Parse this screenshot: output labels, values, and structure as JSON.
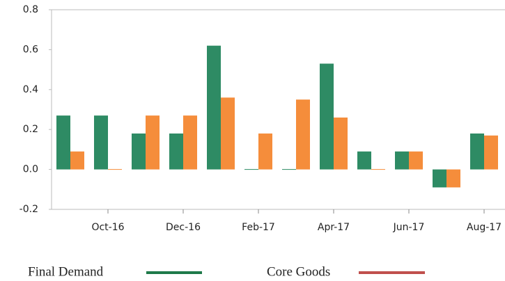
{
  "chart_data": {
    "type": "bar",
    "categories": [
      null,
      "Oct-16",
      null,
      "Dec-16",
      null,
      "Feb-17",
      null,
      "Apr-17",
      null,
      "Jun-17",
      null,
      "Aug-17"
    ],
    "series": [
      {
        "name": "Final Demand",
        "color": "#2e8b64",
        "legend_color": "#1f7a4a",
        "values": [
          0.27,
          0.27,
          0.18,
          0.18,
          0.62,
          0.0,
          0.0,
          0.53,
          0.09,
          0.09,
          -0.09,
          0.18
        ]
      },
      {
        "name": "Core Goods",
        "color": "#f58d3b",
        "legend_color": "#c0504d",
        "values": [
          0.09,
          0.0,
          0.27,
          0.27,
          0.36,
          0.18,
          0.35,
          0.26,
          0.0,
          0.09,
          -0.09,
          0.17
        ]
      }
    ],
    "ylim": [
      -0.2,
      0.8
    ],
    "yticks": [
      {
        "value": -0.2,
        "label": "-0.2"
      },
      {
        "value": 0,
        "label": "0.0"
      },
      {
        "value": 0.2,
        "label": "0.2"
      },
      {
        "value": 0.4,
        "label": "0.4"
      },
      {
        "value": 0.6,
        "label": "0.6"
      },
      {
        "value": 0.8,
        "label": "0.8"
      }
    ],
    "grid": false
  }
}
